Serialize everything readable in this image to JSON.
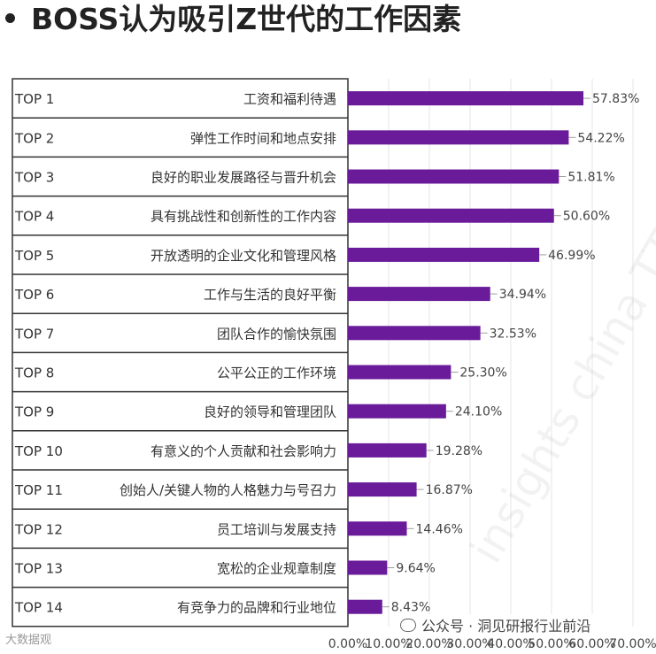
{
  "page": {
    "title": "BOSS认为吸引Z世代的工作因素"
  },
  "footer": {
    "source_logo": "大数据观",
    "wechat_label": "公众号 · 洞见研报行业前沿"
  },
  "watermark_text": "insights china TTI",
  "colors": {
    "bar": "#6a1b9a",
    "leader": "#9e9e9e",
    "border": "#333333",
    "tick": "#444444"
  },
  "chart_data": {
    "type": "bar",
    "orientation": "horizontal",
    "title": "",
    "xlabel": "",
    "ylabel": "",
    "xlim": [
      0,
      70
    ],
    "x_ticks": [
      "0.00%",
      "10.00%",
      "20.00%",
      "30.00%",
      "40.00%",
      "50.00%",
      "60.00%",
      "70.00%"
    ],
    "grid": true,
    "ranks": [
      "TOP 1",
      "TOP 2",
      "TOP 3",
      "TOP 4",
      "TOP 5",
      "TOP 6",
      "TOP 7",
      "TOP 8",
      "TOP 9",
      "TOP 10",
      "TOP 11",
      "TOP 12",
      "TOP 13",
      "TOP 14"
    ],
    "categories": [
      "工资和福利待遇",
      "弹性工作时间和地点安排",
      "良好的职业发展路径与晋升机会",
      "具有挑战性和创新性的工作内容",
      "开放透明的企业文化和管理风格",
      "工作与生活的良好平衡",
      "团队合作的愉快氛围",
      "公平公正的工作环境",
      "良好的领导和管理团队",
      "有意义的个人贡献和社会影响力",
      "创始人/关键人物的人格魅力与号召力",
      "员工培训与发展支持",
      "宽松的企业规章制度",
      "有竞争力的品牌和行业地位"
    ],
    "values": [
      57.83,
      54.22,
      51.81,
      50.6,
      46.99,
      34.94,
      32.53,
      25.3,
      24.1,
      19.28,
      16.87,
      14.46,
      9.64,
      8.43
    ],
    "value_labels": [
      "57.83%",
      "54.22%",
      "51.81%",
      "50.60%",
      "46.99%",
      "34.94%",
      "32.53%",
      "25.30%",
      "24.10%",
      "19.28%",
      "16.87%",
      "14.46%",
      "9.64%",
      "8.43%"
    ]
  }
}
